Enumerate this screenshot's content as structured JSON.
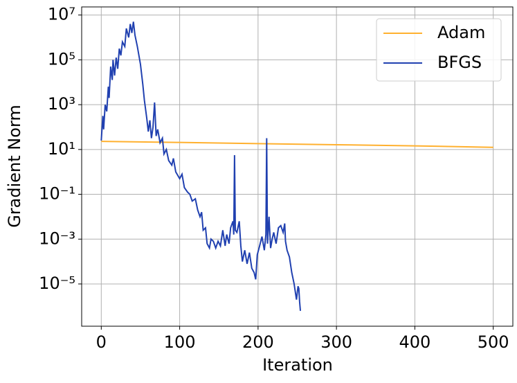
{
  "chart_data": {
    "type": "line",
    "xlabel": "Iteration",
    "ylabel": "Gradient Norm",
    "xlim": [
      -25,
      525
    ],
    "xticks": [
      0,
      100,
      200,
      300,
      400,
      500
    ],
    "ylim": [
      1.3e-07,
      23000000.0
    ],
    "yscale": "log",
    "yticks": [
      {
        "value": 1e-05,
        "label": "10⁻⁵"
      },
      {
        "value": 0.001,
        "label": "10⁻³"
      },
      {
        "value": 0.1,
        "label": "10⁻¹"
      },
      {
        "value": 10,
        "label": "10¹"
      },
      {
        "value": 1000,
        "label": "10³"
      },
      {
        "value": 100000,
        "label": "10⁵"
      },
      {
        "value": 10000000,
        "label": "10⁷"
      }
    ],
    "grid": true,
    "legend": "upper right",
    "series": [
      {
        "name": "Adam",
        "color": "#ffb02e",
        "x": [
          0,
          100,
          200,
          300,
          400,
          500
        ],
        "values": [
          23,
          20.6,
          18.3,
          16.3,
          14.5,
          12.5
        ]
      },
      {
        "name": "BFGS",
        "color": "#2040b0",
        "x": [
          0,
          2,
          3,
          5,
          7,
          9,
          10,
          12,
          14,
          15,
          17,
          19,
          21,
          23,
          25,
          27,
          30,
          32,
          35,
          37,
          39,
          41,
          43,
          46,
          50,
          53,
          55,
          58,
          60,
          62,
          64,
          66,
          68,
          70,
          72,
          75,
          78,
          80,
          83,
          86,
          90,
          92,
          95,
          100,
          103,
          106,
          110,
          113,
          116,
          120,
          123,
          126,
          128,
          130,
          133,
          135,
          138,
          140,
          143,
          146,
          149,
          152,
          155,
          158,
          160,
          163,
          165,
          168,
          169,
          170,
          171,
          173,
          176,
          178,
          180,
          183,
          186,
          189,
          192,
          195,
          197,
          199,
          202,
          205,
          208,
          210,
          211,
          212,
          214,
          216,
          218,
          220,
          223,
          226,
          229,
          232,
          234,
          235,
          237,
          240,
          243,
          246,
          249,
          251,
          252,
          253,
          254
        ],
        "values": [
          25,
          316,
          79,
          1000,
          501,
          6310,
          2000,
          50100,
          12600,
          100000,
          20000,
          126000,
          39800,
          316000,
          158000,
          631000,
          398000,
          2510000,
          1000000,
          3980000,
          1580000,
          5010000,
          1260000,
          398000,
          63100,
          7940,
          1580,
          251,
          63,
          200,
          32,
          100,
          1260,
          40,
          79,
          20,
          32,
          6.3,
          10,
          3.2,
          2.0,
          4.0,
          1.0,
          0.5,
          0.79,
          0.2,
          0.126,
          0.1,
          0.05,
          0.063,
          0.02,
          0.01,
          0.016,
          0.0025,
          0.0032,
          0.00063,
          0.0004,
          0.001,
          0.0008,
          0.0004,
          0.0008,
          0.0005,
          0.0025,
          0.0005,
          0.0016,
          0.00063,
          0.0032,
          0.0063,
          0.0016,
          5.6,
          0.0025,
          0.002,
          0.0063,
          0.0005,
          0.0001,
          0.00032,
          7.9e-05,
          0.00025,
          5e-05,
          3.2e-05,
          1.6e-05,
          0.0002,
          0.0005,
          0.0013,
          0.00032,
          0.0016,
          32,
          0.00063,
          0.01,
          0.0004,
          0.001,
          0.002,
          0.00063,
          0.0032,
          0.004,
          0.002,
          0.005,
          0.0008,
          0.00032,
          0.00016,
          3.2e-05,
          1e-05,
          2e-06,
          7.9e-06,
          6.3e-06,
          1.6e-06,
          6.3e-07
        ]
      }
    ]
  }
}
